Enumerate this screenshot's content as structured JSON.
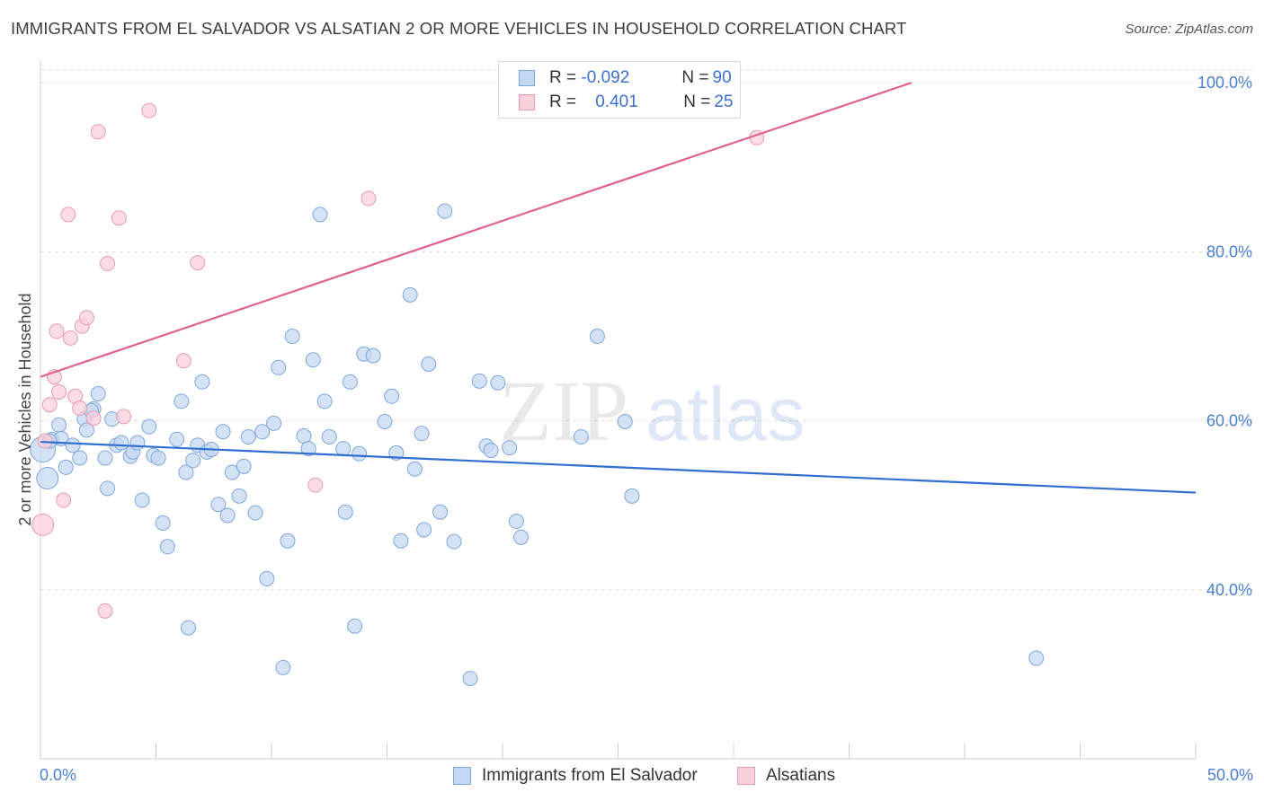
{
  "title": "IMMIGRANTS FROM EL SALVADOR VS ALSATIAN 2 OR MORE VEHICLES IN HOUSEHOLD CORRELATION CHART",
  "source": "Source: ZipAtlas.com",
  "watermark": {
    "zip": "ZIP",
    "atlas": "atlas"
  },
  "legend": {
    "rows": [
      {
        "r_label": "R =",
        "r_value": "-0.092",
        "n_label": "N =",
        "n_value": "90"
      },
      {
        "r_label": "R =",
        "r_value": "0.401",
        "n_label": "N =",
        "n_value": "25"
      }
    ]
  },
  "bottom_legend": {
    "series1": "Immigrants from El Salvador",
    "series2": "Alsatians"
  },
  "colors": {
    "series1_fill": "#c5d8f3",
    "series1_stroke": "#7fa6dc",
    "series1_line": "#2f6fd0",
    "series2_fill": "#f9cfdc",
    "series2_stroke": "#e79ab2",
    "series2_line": "#e0628a",
    "tick_text": "#4a7fd0",
    "grid": "#dcdcdc"
  },
  "chart_data": {
    "type": "scatter",
    "title": "IMMIGRANTS FROM EL SALVADOR VS ALSATIAN 2 OR MORE VEHICLES IN HOUSEHOLD CORRELATION CHART",
    "xlabel": "",
    "ylabel": "2 or more Vehicles in Household",
    "xlim": [
      0,
      50
    ],
    "ylim": [
      20,
      101.5
    ],
    "x_tick_labels": [
      "0.0%",
      "50.0%"
    ],
    "y_ticks": [
      40,
      60,
      80,
      100
    ],
    "y_tick_labels": [
      "40.0%",
      "60.0%",
      "80.0%",
      "100.0%"
    ],
    "grid": true,
    "series": [
      {
        "name": "Immigrants from El Salvador",
        "r": -0.092,
        "n": 90,
        "trend": {
          "x": [
            0,
            50
          ],
          "y": [
            57.5,
            51.5
          ]
        },
        "points": [
          [
            0.1,
            56.6,
            14
          ],
          [
            0.3,
            53.2,
            12
          ],
          [
            0.5,
            57.8,
            8
          ],
          [
            0.8,
            59.5,
            8
          ],
          [
            0.9,
            57.9,
            8
          ],
          [
            1.1,
            54.5,
            8
          ],
          [
            1.4,
            57.1,
            8
          ],
          [
            1.7,
            55.6,
            8
          ],
          [
            1.9,
            60.2,
            8
          ],
          [
            2.0,
            58.9,
            8
          ],
          [
            2.3,
            61.4,
            8
          ],
          [
            2.5,
            63.2,
            8
          ],
          [
            2.8,
            55.6,
            8
          ],
          [
            2.9,
            52.0,
            8
          ],
          [
            3.1,
            60.2,
            8
          ],
          [
            3.3,
            57.1,
            8
          ],
          [
            3.5,
            57.4,
            8
          ],
          [
            3.9,
            55.8,
            8
          ],
          [
            4.0,
            56.3,
            8
          ],
          [
            4.2,
            57.4,
            8
          ],
          [
            4.4,
            50.6,
            8
          ],
          [
            4.7,
            59.3,
            8
          ],
          [
            4.9,
            55.9,
            8
          ],
          [
            5.1,
            55.6,
            8
          ],
          [
            5.3,
            47.9,
            8
          ],
          [
            5.5,
            45.1,
            8
          ],
          [
            5.9,
            57.8,
            8
          ],
          [
            6.1,
            62.3,
            8
          ],
          [
            6.3,
            53.9,
            8
          ],
          [
            6.4,
            35.5,
            8
          ],
          [
            6.6,
            55.3,
            8
          ],
          [
            6.8,
            57.1,
            8
          ],
          [
            7.0,
            64.6,
            8
          ],
          [
            7.2,
            56.3,
            8
          ],
          [
            7.4,
            56.6,
            8
          ],
          [
            7.7,
            50.1,
            8
          ],
          [
            7.9,
            58.7,
            8
          ],
          [
            8.1,
            48.8,
            8
          ],
          [
            8.3,
            53.9,
            8
          ],
          [
            8.6,
            51.1,
            8
          ],
          [
            8.8,
            54.6,
            8
          ],
          [
            9.0,
            58.1,
            8
          ],
          [
            9.3,
            49.1,
            8
          ],
          [
            9.6,
            58.7,
            8
          ],
          [
            9.8,
            41.3,
            8
          ],
          [
            10.1,
            59.7,
            8
          ],
          [
            10.3,
            66.3,
            8
          ],
          [
            10.5,
            30.8,
            8
          ],
          [
            10.7,
            45.8,
            8
          ],
          [
            10.9,
            70.0,
            8
          ],
          [
            11.4,
            58.2,
            8
          ],
          [
            11.6,
            56.7,
            8
          ],
          [
            11.8,
            67.2,
            8
          ],
          [
            12.1,
            84.4,
            8
          ],
          [
            12.3,
            62.3,
            8
          ],
          [
            12.5,
            58.1,
            8
          ],
          [
            13.1,
            56.7,
            8
          ],
          [
            13.2,
            49.2,
            8
          ],
          [
            13.4,
            64.6,
            8
          ],
          [
            13.6,
            35.7,
            8
          ],
          [
            13.8,
            56.1,
            8
          ],
          [
            14.0,
            67.9,
            8
          ],
          [
            14.4,
            67.7,
            8
          ],
          [
            14.9,
            59.9,
            8
          ],
          [
            15.2,
            62.9,
            8
          ],
          [
            15.4,
            56.2,
            8
          ],
          [
            15.6,
            45.8,
            8
          ],
          [
            16.0,
            74.9,
            8
          ],
          [
            16.2,
            54.3,
            8
          ],
          [
            16.5,
            58.5,
            8
          ],
          [
            16.6,
            47.1,
            8
          ],
          [
            16.8,
            66.7,
            8
          ],
          [
            17.3,
            49.2,
            8
          ],
          [
            17.5,
            84.8,
            8
          ],
          [
            17.9,
            45.7,
            8
          ],
          [
            18.6,
            29.5,
            8
          ],
          [
            19.0,
            64.7,
            8
          ],
          [
            19.3,
            57.0,
            8
          ],
          [
            19.5,
            56.5,
            8
          ],
          [
            19.8,
            64.5,
            8
          ],
          [
            20.3,
            56.8,
            8
          ],
          [
            20.6,
            48.1,
            8
          ],
          [
            20.8,
            46.2,
            8
          ],
          [
            23.4,
            58.1,
            8
          ],
          [
            24.1,
            70.0,
            8
          ],
          [
            25.3,
            59.9,
            8
          ],
          [
            25.6,
            51.1,
            8
          ],
          [
            43.1,
            31.9,
            8
          ],
          [
            0.4,
            57.6,
            8
          ],
          [
            2.2,
            61.2,
            8
          ]
        ]
      },
      {
        "name": "Alsatians",
        "r": 0.401,
        "n": 25,
        "trend": {
          "x": [
            0,
            37.7
          ],
          "y": [
            65.2,
            100
          ]
        },
        "points": [
          [
            0.1,
            47.7,
            12
          ],
          [
            0.2,
            57.6,
            8
          ],
          [
            0.4,
            61.9,
            8
          ],
          [
            0.6,
            65.2,
            8
          ],
          [
            0.8,
            63.4,
            8
          ],
          [
            0.7,
            70.6,
            8
          ],
          [
            1.0,
            50.6,
            8
          ],
          [
            1.2,
            84.4,
            8
          ],
          [
            1.3,
            69.8,
            8
          ],
          [
            1.5,
            62.9,
            8
          ],
          [
            1.7,
            61.5,
            8
          ],
          [
            1.8,
            71.2,
            8
          ],
          [
            2.0,
            72.2,
            8
          ],
          [
            2.3,
            60.3,
            8
          ],
          [
            2.5,
            94.2,
            8
          ],
          [
            2.8,
            37.5,
            8
          ],
          [
            2.9,
            78.6,
            8
          ],
          [
            3.4,
            84.0,
            8
          ],
          [
            3.6,
            60.5,
            8
          ],
          [
            4.7,
            96.7,
            8
          ],
          [
            6.2,
            67.1,
            8
          ],
          [
            6.8,
            78.7,
            8
          ],
          [
            11.9,
            52.4,
            8
          ],
          [
            14.2,
            86.3,
            8
          ],
          [
            31.0,
            93.5,
            8
          ]
        ]
      }
    ]
  }
}
